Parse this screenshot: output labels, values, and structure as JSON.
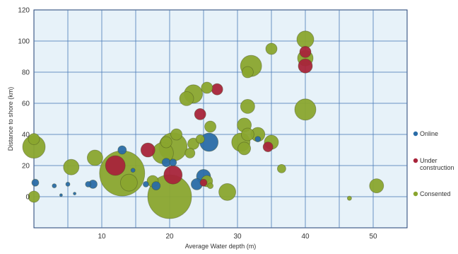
{
  "chart_data": {
    "type": "scatter",
    "bubble": true,
    "xlabel": "Average Water depth (m)",
    "ylabel": "Distance to shore (km)",
    "xlim": [
      0,
      55
    ],
    "ylim": [
      -20,
      120
    ],
    "x_ticks": [
      10,
      20,
      30,
      40,
      50
    ],
    "y_ticks": [
      0,
      20,
      40,
      60,
      80,
      100,
      120
    ],
    "grid": true,
    "legend_position": "right",
    "colors": {
      "plot_background": "#e7f2f9",
      "grid": "#4a7cb8",
      "axis": "#1f3f73"
    },
    "series": [
      {
        "name": "Online",
        "color": "#2a6ca7",
        "points": [
          {
            "x": 0.2,
            "y": 9,
            "size": 5
          },
          {
            "x": 3,
            "y": 7,
            "size": 3
          },
          {
            "x": 5,
            "y": 8,
            "size": 3
          },
          {
            "x": 8,
            "y": 8,
            "size": 4
          },
          {
            "x": 8.7,
            "y": 8,
            "size": 6
          },
          {
            "x": 13,
            "y": 30,
            "size": 6
          },
          {
            "x": 14.6,
            "y": 17,
            "size": 3
          },
          {
            "x": 16.5,
            "y": 8,
            "size": 4
          },
          {
            "x": 18,
            "y": 7,
            "size": 6
          },
          {
            "x": 19.5,
            "y": 22,
            "size": 6
          },
          {
            "x": 20.5,
            "y": 22,
            "size": 5
          },
          {
            "x": 24,
            "y": 8,
            "size": 8
          },
          {
            "x": 25.8,
            "y": 35,
            "size": 13
          },
          {
            "x": 25,
            "y": 13,
            "size": 10
          },
          {
            "x": 33,
            "y": 37,
            "size": 4
          },
          {
            "x": 6,
            "y": 2,
            "size": 2
          },
          {
            "x": 4,
            "y": 1,
            "size": 2
          }
        ]
      },
      {
        "name": "Under construction",
        "color": "#a8243a",
        "points": [
          {
            "x": 12,
            "y": 20,
            "size": 14
          },
          {
            "x": 16.8,
            "y": 30,
            "size": 10
          },
          {
            "x": 20.5,
            "y": 14,
            "size": 13
          },
          {
            "x": 24.5,
            "y": 53,
            "size": 8
          },
          {
            "x": 27,
            "y": 69,
            "size": 8
          },
          {
            "x": 25,
            "y": 9,
            "size": 5
          },
          {
            "x": 34.5,
            "y": 32,
            "size": 7
          },
          {
            "x": 40,
            "y": 93,
            "size": 8
          },
          {
            "x": 40,
            "y": 84,
            "size": 10
          }
        ]
      },
      {
        "name": "Consented",
        "color": "#8aa52e",
        "points": [
          {
            "x": 0,
            "y": 37,
            "size": 8
          },
          {
            "x": 0,
            "y": 32,
            "size": 16
          },
          {
            "x": 0,
            "y": 0,
            "size": 8
          },
          {
            "x": 5.5,
            "y": 19,
            "size": 11
          },
          {
            "x": 9,
            "y": 25,
            "size": 11
          },
          {
            "x": 13,
            "y": 15,
            "size": 32
          },
          {
            "x": 14,
            "y": 9,
            "size": 12
          },
          {
            "x": 17.5,
            "y": 10,
            "size": 8
          },
          {
            "x": 19,
            "y": 28,
            "size": 15
          },
          {
            "x": 19.5,
            "y": 35,
            "size": 8
          },
          {
            "x": 20.5,
            "y": 32,
            "size": 20
          },
          {
            "x": 21,
            "y": 40,
            "size": 8
          },
          {
            "x": 20,
            "y": 0,
            "size": 31
          },
          {
            "x": 22.5,
            "y": 63,
            "size": 10
          },
          {
            "x": 23.5,
            "y": 66,
            "size": 13
          },
          {
            "x": 23,
            "y": 28,
            "size": 7
          },
          {
            "x": 23.5,
            "y": 34,
            "size": 8
          },
          {
            "x": 24.5,
            "y": 37,
            "size": 6
          },
          {
            "x": 25.5,
            "y": 70,
            "size": 8
          },
          {
            "x": 26,
            "y": 45,
            "size": 8
          },
          {
            "x": 25.5,
            "y": 10,
            "size": 8
          },
          {
            "x": 26,
            "y": 7,
            "size": 4
          },
          {
            "x": 28.5,
            "y": 3,
            "size": 12
          },
          {
            "x": 30.5,
            "y": 35,
            "size": 13
          },
          {
            "x": 31,
            "y": 46,
            "size": 10
          },
          {
            "x": 31,
            "y": 31,
            "size": 9
          },
          {
            "x": 31.5,
            "y": 40,
            "size": 9
          },
          {
            "x": 31.5,
            "y": 80,
            "size": 8
          },
          {
            "x": 32,
            "y": 84,
            "size": 15
          },
          {
            "x": 31.5,
            "y": 58,
            "size": 10
          },
          {
            "x": 33,
            "y": 40,
            "size": 10
          },
          {
            "x": 35,
            "y": 35,
            "size": 10
          },
          {
            "x": 35,
            "y": 95,
            "size": 8
          },
          {
            "x": 36.5,
            "y": 18,
            "size": 6
          },
          {
            "x": 40,
            "y": 101,
            "size": 12
          },
          {
            "x": 40,
            "y": 89,
            "size": 11
          },
          {
            "x": 40,
            "y": 56,
            "size": 15
          },
          {
            "x": 46.5,
            "y": -1,
            "size": 3
          },
          {
            "x": 50.5,
            "y": 7,
            "size": 10
          }
        ]
      }
    ]
  }
}
